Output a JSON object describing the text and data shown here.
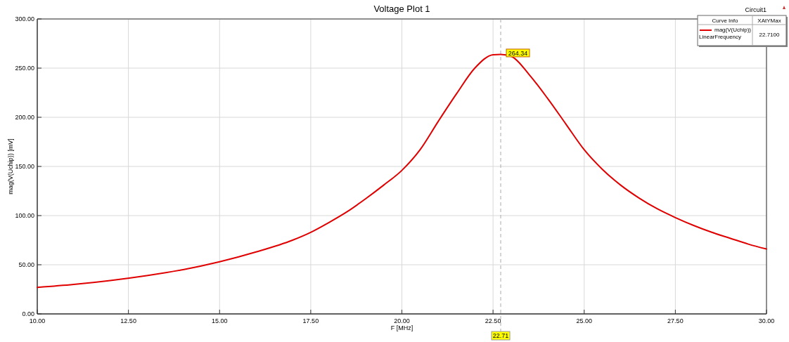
{
  "chart_data": {
    "type": "line",
    "title": "Voltage Plot 1",
    "xlabel": "F [MHz]",
    "ylabel": "mag(V(Uchip)) [mV]",
    "legend_title": "Curve Info",
    "x": [
      10,
      11,
      12,
      13,
      14,
      15,
      16,
      17,
      17.5,
      18,
      18.5,
      19,
      19.5,
      20,
      20.5,
      21,
      21.5,
      22,
      22.5,
      22.71,
      23,
      23.5,
      24,
      24.5,
      25,
      25.5,
      26,
      26.5,
      27,
      27.5,
      28,
      28.5,
      29,
      29.5,
      30
    ],
    "series": [
      {
        "name": "mag(V(Uchip))",
        "color": "#e00000",
        "values": [
          27,
          30,
          34,
          39,
          45,
          53,
          63,
          75,
          83,
          93,
          104,
          117,
          131,
          146,
          167,
          196,
          224,
          250,
          263.6,
          264,
          262,
          243,
          219,
          193,
          167,
          147,
          131,
          118,
          107,
          98,
          90,
          83,
          77,
          71,
          66
        ]
      }
    ],
    "xlim": [
      10,
      30
    ],
    "xticks": [
      {
        "value": 10,
        "label": "10.00"
      },
      {
        "value": 12.5,
        "label": "12.50"
      },
      {
        "value": 15,
        "label": "15.00"
      },
      {
        "value": 17.5,
        "label": "17.50"
      },
      {
        "value": 20,
        "label": "20.00"
      },
      {
        "value": 22.5,
        "label": "22.50"
      },
      {
        "value": 25,
        "label": "25.00"
      },
      {
        "value": 27.5,
        "label": "27.50"
      },
      {
        "value": 30,
        "label": "30.00"
      }
    ],
    "ylim": [
      0,
      300
    ],
    "yticks": [
      {
        "value": 0,
        "label": "0.00"
      },
      {
        "value": 50,
        "label": "50.00"
      },
      {
        "value": 100,
        "label": "100.00"
      },
      {
        "value": 150,
        "label": "150.00"
      },
      {
        "value": 200,
        "label": "200.00"
      },
      {
        "value": 250,
        "label": "250.00"
      },
      {
        "value": 300,
        "label": "300.00"
      }
    ],
    "grid": true,
    "legend": "top right",
    "marker": "none",
    "line_style": "solid",
    "ref_lines": [
      {
        "axis": "x",
        "value": 22.71,
        "label": "22.71",
        "color": "#aaaaaa",
        "line_style": "dashed"
      }
    ],
    "annotations": [
      {
        "text": "264.34",
        "x": 22.71,
        "y": 264.34
      },
      "Circuit1",
      "XAtYMax",
      "LinearFrequency",
      "22.7100"
    ]
  }
}
